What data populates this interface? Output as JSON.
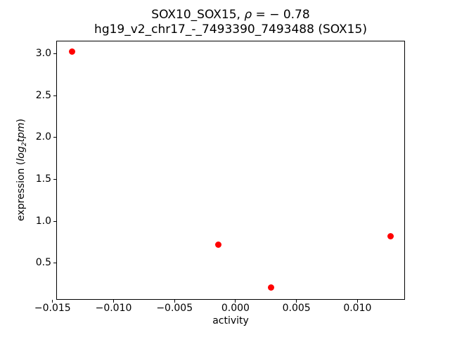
{
  "figure": {
    "title_line1_plain": "SOX10_SOX15, ρ = − 0.78",
    "title_line1_segments": [
      {
        "text": "SOX10_SOX15, ",
        "style": "normal"
      },
      {
        "text": "ρ",
        "style": "italic"
      },
      {
        "text": " = − 0.78",
        "style": "normal"
      }
    ],
    "title_line2": "hg19_v2_chr17_-_7493390_7493488 (SOX15)",
    "ylabel_plain": "expression (log2tpm)",
    "ylabel_segments": [
      {
        "text": "expression (",
        "style": "normal"
      },
      {
        "text": "log",
        "style": "italic"
      },
      {
        "text": "2",
        "style": "italic-sub"
      },
      {
        "text": "tpm",
        "style": "italic"
      },
      {
        "text": ")",
        "style": "normal"
      }
    ]
  },
  "chart_data": {
    "type": "scatter",
    "title": "SOX10_SOX15, ρ = − 0.78\nhg19_v2_chr17_-_7493390_7493488 (SOX15)",
    "xlabel": "activity",
    "ylabel": "expression (log2tpm)",
    "marker_color": "#ff0000",
    "text_color": "#000000",
    "grid": false,
    "legend": null,
    "xlim": [
      -0.0147,
      0.0139
    ],
    "ylim": [
      0.06,
      3.16
    ],
    "x_ticks": [
      -0.015,
      -0.01,
      -0.005,
      0.0,
      0.005,
      0.01
    ],
    "x_tick_labels": [
      "−0.015",
      "−0.010",
      "−0.005",
      "0.000",
      "0.005",
      "0.010"
    ],
    "y_ticks": [
      0.5,
      1.0,
      1.5,
      2.0,
      2.5,
      3.0
    ],
    "y_tick_labels": [
      "0.5",
      "1.0",
      "1.5",
      "2.0",
      "2.5",
      "3.0"
    ],
    "points": [
      {
        "x": -0.0134,
        "y": 3.03
      },
      {
        "x": -0.0014,
        "y": 0.72
      },
      {
        "x": 0.0029,
        "y": 0.21
      },
      {
        "x": 0.0127,
        "y": 0.82
      }
    ]
  }
}
